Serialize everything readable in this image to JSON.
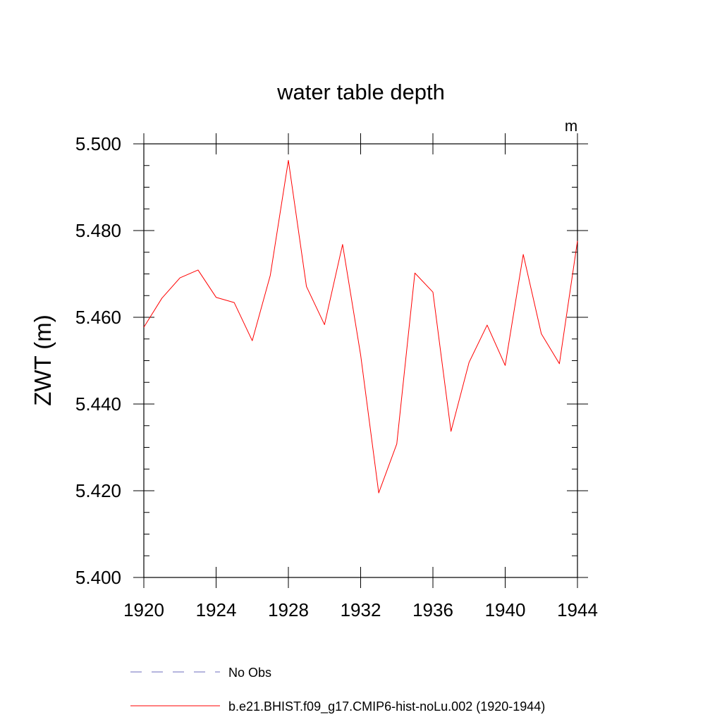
{
  "chart_data": {
    "type": "line",
    "title": "water table depth",
    "units_label": "m",
    "xlabel": "",
    "ylabel": "ZWT  (m)",
    "xlim": [
      1920,
      1944
    ],
    "ylim": [
      5.4,
      5.5
    ],
    "x_ticks": [
      1920,
      1924,
      1928,
      1932,
      1936,
      1940,
      1944
    ],
    "y_ticks": [
      5.4,
      5.42,
      5.44,
      5.46,
      5.48,
      5.5
    ],
    "x_tick_labels": [
      "1920",
      "1924",
      "1928",
      "1932",
      "1936",
      "1940",
      "1944"
    ],
    "y_tick_labels": [
      "5.400",
      "5.420",
      "5.440",
      "5.460",
      "5.480",
      "5.500"
    ],
    "grid": false,
    "legend_position": "bottom",
    "series": [
      {
        "name": "b.e21.BHIST.f09_g17.CMIP6-hist-noLu.002 (1920-1944)",
        "color": "#ff0000",
        "dash": "solid",
        "x": [
          1920,
          1921,
          1922,
          1923,
          1924,
          1925,
          1926,
          1927,
          1928,
          1929,
          1930,
          1931,
          1932,
          1933,
          1934,
          1935,
          1936,
          1937,
          1938,
          1939,
          1940,
          1941,
          1942,
          1943,
          1944
        ],
        "y": [
          5.4577,
          5.4644,
          5.4691,
          5.4709,
          5.4646,
          5.4634,
          5.4546,
          5.4697,
          5.4962,
          5.4671,
          5.4583,
          5.4768,
          5.4513,
          5.4195,
          5.4308,
          5.4702,
          5.4658,
          5.4337,
          5.4496,
          5.4582,
          5.4489,
          5.4745,
          5.4562,
          5.4493,
          5.4776
        ]
      }
    ],
    "legend": [
      {
        "label": "No Obs",
        "color": "#6b6bbd",
        "dash": "dashed"
      },
      {
        "label": "b.e21.BHIST.f09_g17.CMIP6-hist-noLu.002 (1920-1944)",
        "color": "#ff0000",
        "dash": "solid"
      }
    ]
  }
}
